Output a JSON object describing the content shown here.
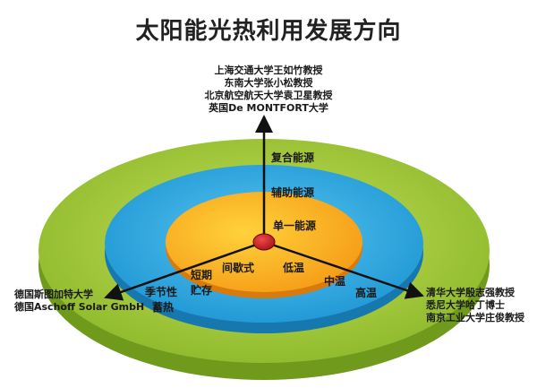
{
  "title": "太阳能光热利用发展方向",
  "top_refs": [
    "上海交通大学王如竹教授",
    "东南大学张小松教授",
    "北京航空航天大学袁卫星教授",
    "英国De MONTFORT大学"
  ],
  "left_refs": [
    "德国斯图加特大学",
    "德国Aschoff Solar GmbH"
  ],
  "right_refs": [
    "清华大学殷志强教授",
    "悉尼大学哈丁博士",
    "南京工业大学庄俊教授"
  ],
  "rings": {
    "outer": "复合能源",
    "middle": "辅助能源",
    "inner": "单一能源"
  },
  "left_axis": {
    "outer_line1": "季节性",
    "outer_line2": "蓄热",
    "middle_line1": "短期",
    "middle_line2": "贮存",
    "inner": "间歇式"
  },
  "right_axis": {
    "inner": "低温",
    "middle": "中温",
    "outer": "高温"
  },
  "colors": {
    "outer": "#9fc93a",
    "middle": "#2fa9e0",
    "inner": "#f7a51c",
    "center": "#cc1f1f"
  }
}
